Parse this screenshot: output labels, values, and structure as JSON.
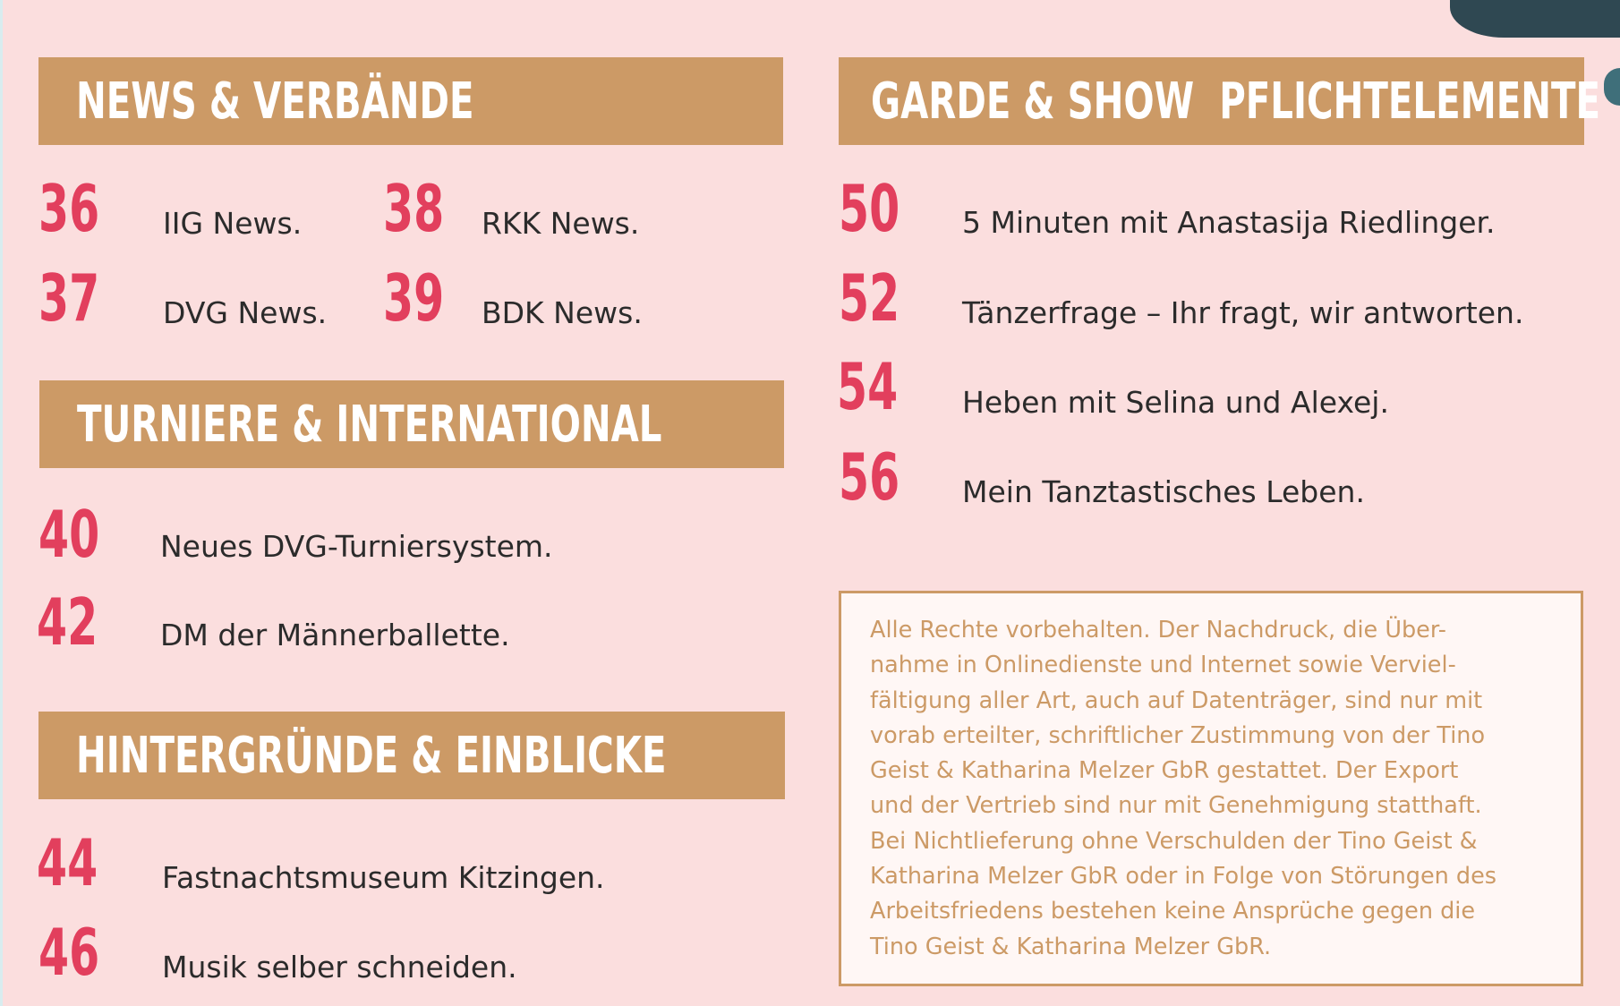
{
  "sections": {
    "news": {
      "title": "NEWS & VERBÄNDE",
      "items": [
        {
          "page": "36",
          "label": "IIG News."
        },
        {
          "page": "37",
          "label": "DVG News."
        },
        {
          "page": "38",
          "label": "RKK News."
        },
        {
          "page": "39",
          "label": "BDK News."
        }
      ]
    },
    "turniere": {
      "title": "TURNIERE & INTERNATIONAL",
      "items": [
        {
          "page": "40",
          "label": "Neues DVG-Turniersystem."
        },
        {
          "page": "42",
          "label": "DM der Männerballette."
        }
      ]
    },
    "hintergruende": {
      "title": "HINTERGRÜNDE & EINBLICKE",
      "items": [
        {
          "page": "44",
          "label": "Fastnachtsmuseum Kitzingen."
        },
        {
          "page": "46",
          "label": "Musik selber schneiden."
        }
      ]
    },
    "garde": {
      "title": "GARDE & SHOW  PFLICHTELEMENTE",
      "items": [
        {
          "page": "50",
          "label": "5 Minuten mit Anastasija Riedlinger."
        },
        {
          "page": "52",
          "label": "Tänzerfrage – Ihr fragt, wir antworten."
        },
        {
          "page": "54",
          "label": "Heben mit Selina und Alexej."
        },
        {
          "page": "56",
          "label": "Mein Tanztastisches Leben."
        }
      ]
    }
  },
  "notice": {
    "lines": [
      "Alle Rechte vorbehalten. Der Nachdruck, die Über-",
      "nahme in Onlinedienste und Internet sowie Verviel-",
      "fältigung aller Art, auch auf Datenträger, sind nur mit",
      "vorab erteilter, schriftlicher Zustimmung von der Tino",
      "Geist & Katharina Melzer GbR gestattet. Der Export",
      "und der Vertrieb sind nur mit Genehmigung statthaft.",
      "Bei Nichtlieferung ohne Verschulden der Tino Geist &",
      "Katharina Melzer GbR oder in Folge von Störungen des",
      "Arbeitsfriedens bestehen keine Ansprüche gegen die",
      "Tino Geist & Katharina Melzer GbR."
    ]
  },
  "colors": {
    "background": "#fbdede",
    "banner": "#cc9a66",
    "page_number": "#e23f5d",
    "text": "#2b2b2b"
  }
}
